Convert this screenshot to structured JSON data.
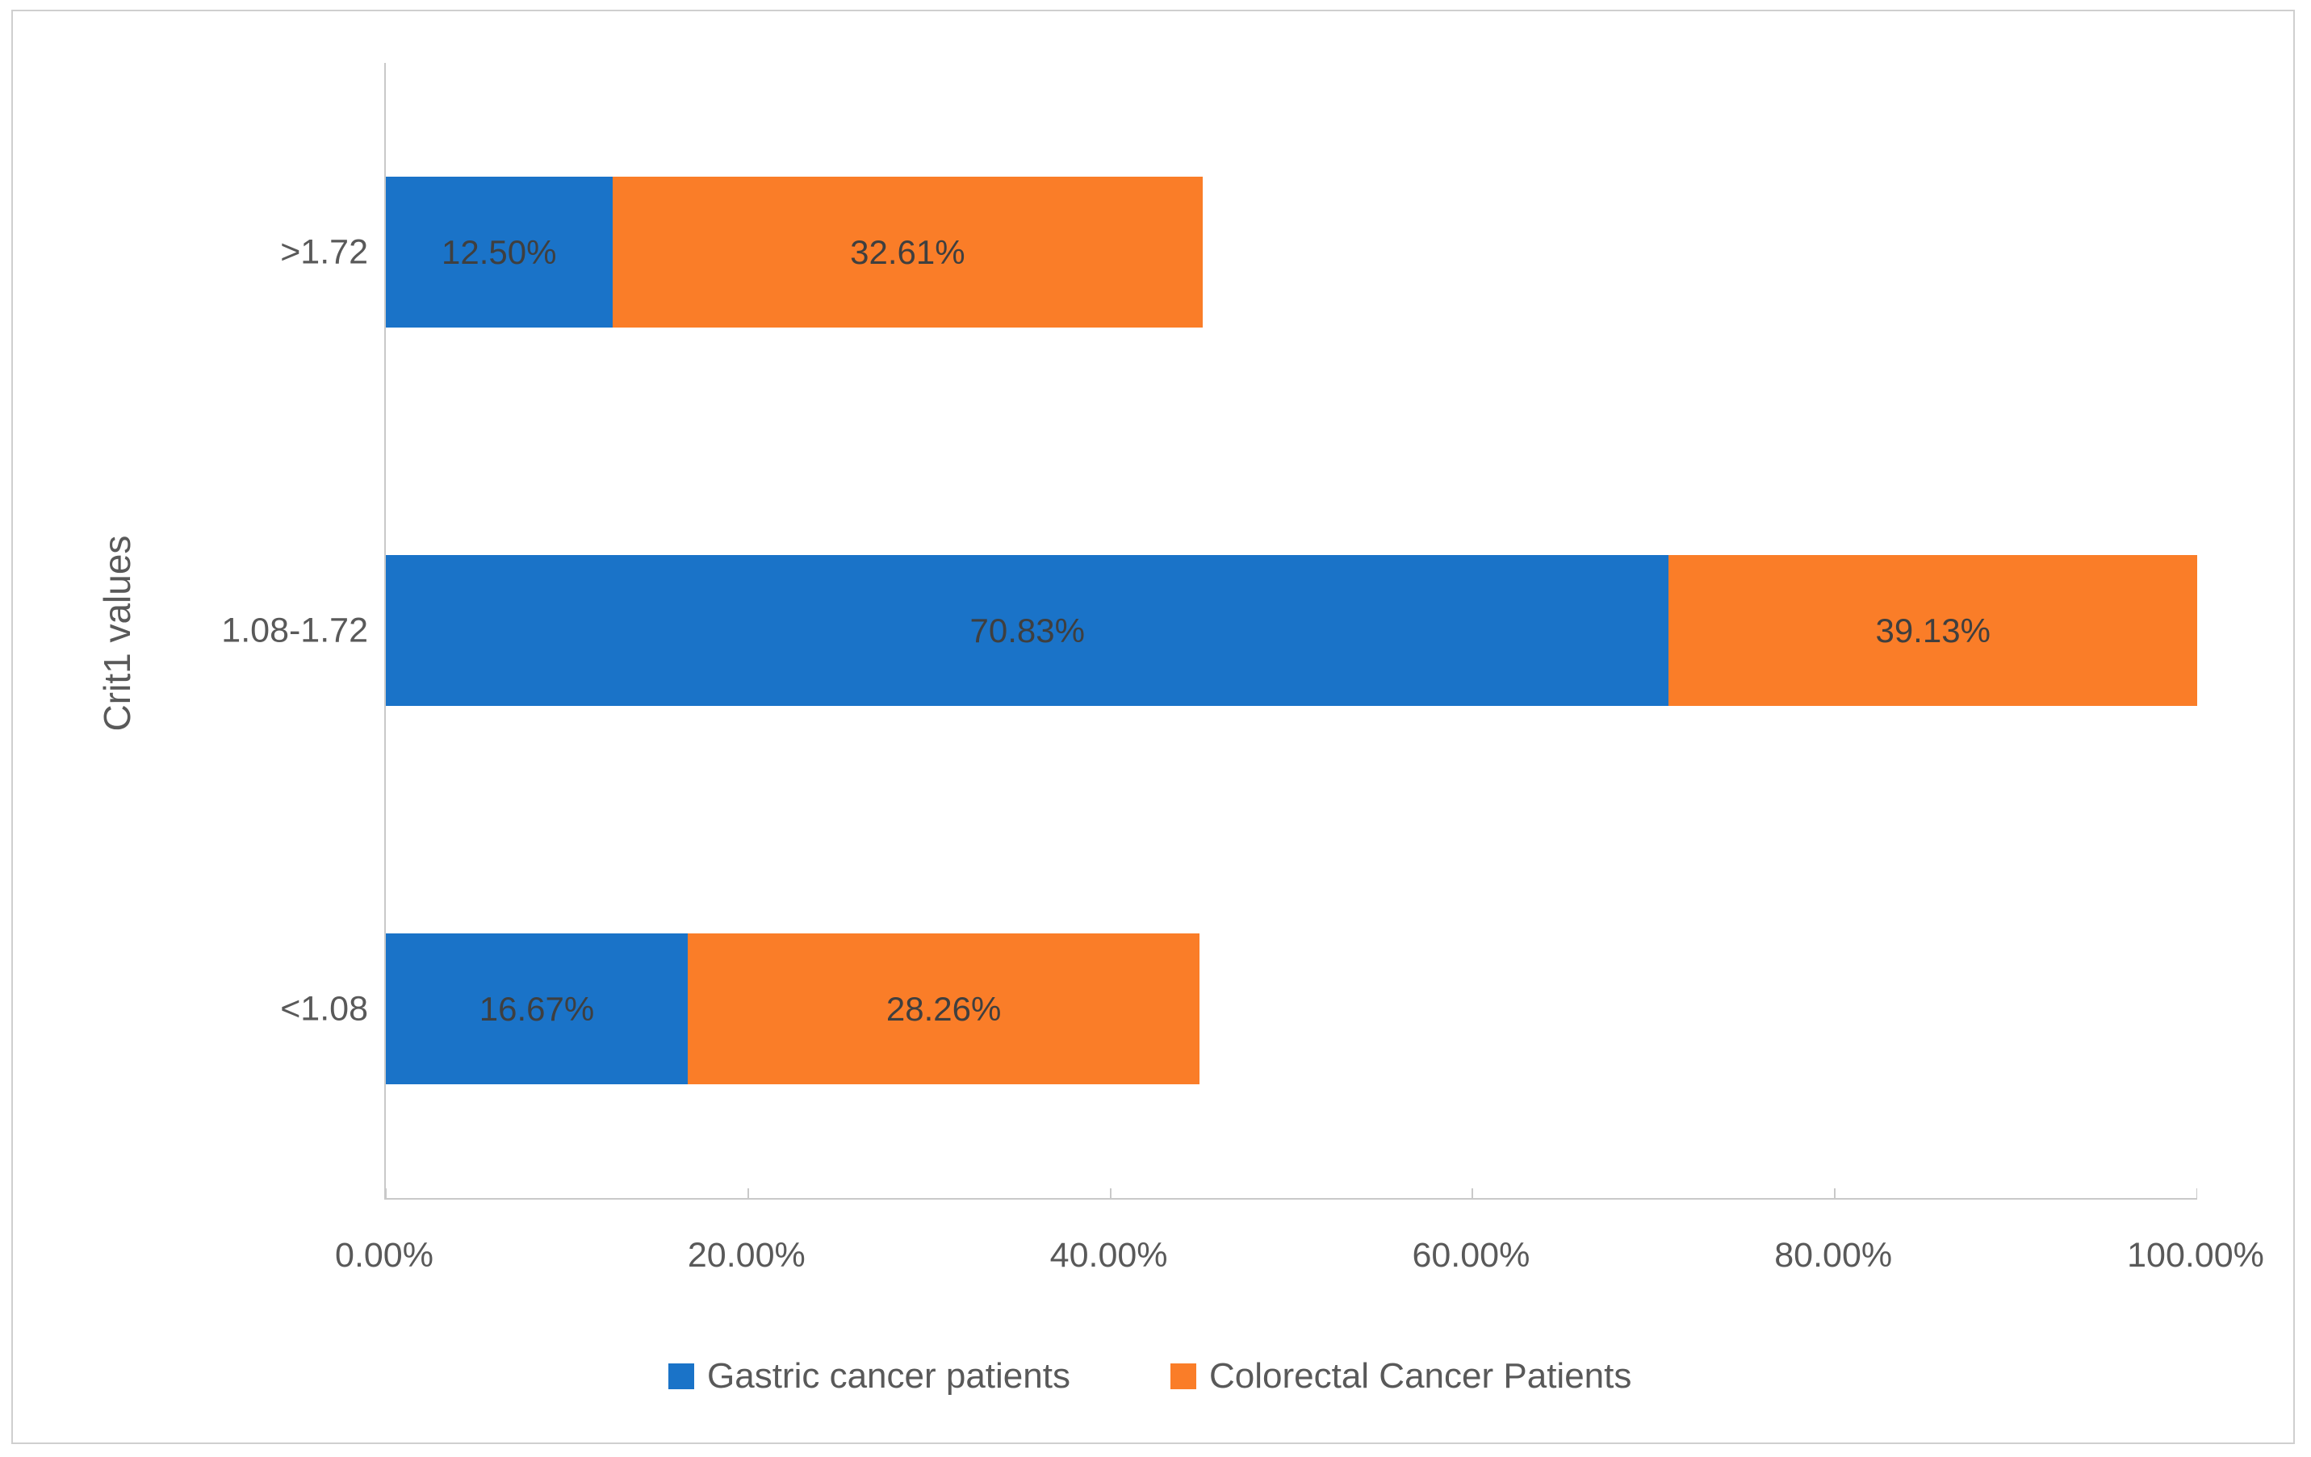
{
  "chart_data": {
    "type": "bar",
    "orientation": "horizontal",
    "stacked": true,
    "title": "",
    "xlabel": "",
    "ylabel": "Crit1 values",
    "categories": [
      ">1.72",
      "1.08-1.72",
      "<1.08"
    ],
    "series": [
      {
        "name": "Gastric cancer patients",
        "color": "#1a73c8",
        "values": [
          12.5,
          70.83,
          16.67
        ],
        "data_labels": [
          "12.50%",
          "70.83%",
          "16.67%"
        ]
      },
      {
        "name": "Colorectal Cancer Patients",
        "color": "#fa7d28",
        "values": [
          32.61,
          39.13,
          28.26
        ],
        "data_labels": [
          "32.61%",
          "39.13%",
          "28.26%"
        ]
      }
    ],
    "xlim": [
      0,
      100
    ],
    "x_tick_labels": [
      "0.00%",
      "20.00%",
      "40.00%",
      "60.00%",
      "80.00%",
      "100.00%"
    ],
    "grid": false,
    "legend_position": "bottom"
  },
  "colors": {
    "data_label": "#3f3f3f",
    "axis_text": "#595959",
    "axis_line": "#c9c9c9",
    "figure_border": "#cfcfcf",
    "background": "#ffffff"
  }
}
